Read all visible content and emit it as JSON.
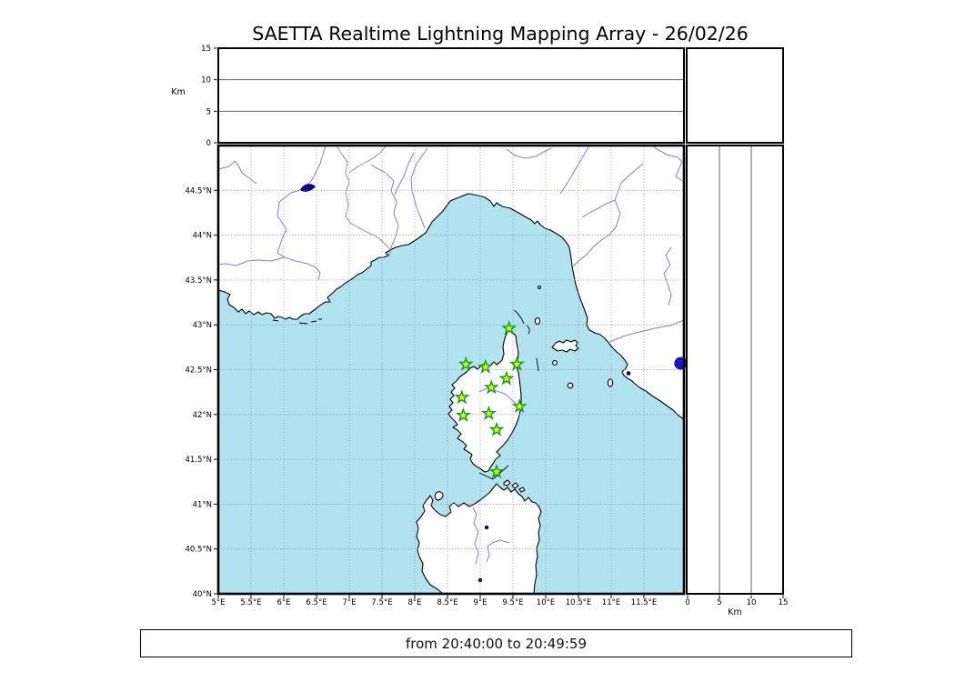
{
  "title": "SAETTA Realtime Lightning Mapping Array - 26/02/26",
  "footer": {
    "time_range": "from 20:40:00 to 20:49:59"
  },
  "figure": {
    "map_axes": {
      "lon_ticks": [
        {
          "value": 5,
          "label": "5°E"
        },
        {
          "value": 5.5,
          "label": "5.5°E"
        },
        {
          "value": 6,
          "label": "6°E"
        },
        {
          "value": 6.5,
          "label": "6.5°E"
        },
        {
          "value": 7,
          "label": "7°E"
        },
        {
          "value": 7.5,
          "label": "7.5°E"
        },
        {
          "value": 8,
          "label": "8°E"
        },
        {
          "value": 8.5,
          "label": "8.5°E"
        },
        {
          "value": 9,
          "label": "9°E"
        },
        {
          "value": 9.5,
          "label": "9.5°E"
        },
        {
          "value": 10,
          "label": "10°E"
        },
        {
          "value": 10.5,
          "label": "10.5°E"
        },
        {
          "value": 11,
          "label": "11°E"
        },
        {
          "value": 11.5,
          "label": "11.5°E"
        }
      ],
      "lat_ticks": [
        {
          "value": 44.5,
          "label": "44.5°N"
        },
        {
          "value": 44,
          "label": "44°N"
        },
        {
          "value": 43.5,
          "label": "43.5°N"
        },
        {
          "value": 43,
          "label": "43°N"
        },
        {
          "value": 42.5,
          "label": "42.5°N"
        },
        {
          "value": 42,
          "label": "42°N"
        },
        {
          "value": 41.5,
          "label": "41.5°N"
        },
        {
          "value": 41,
          "label": "41°N"
        },
        {
          "value": 40.5,
          "label": "40.5°N"
        },
        {
          "value": 40,
          "label": "40°N"
        }
      ]
    },
    "altitude_axes": {
      "unit_label": "Km",
      "max_km": 15,
      "ticks": [
        {
          "value": 0,
          "label": "0"
        },
        {
          "value": 5,
          "label": "5"
        },
        {
          "value": 10,
          "label": "10"
        },
        {
          "value": 15,
          "label": "15"
        }
      ]
    },
    "stations": {
      "marker": "star-icon",
      "count": 12,
      "points": [
        {
          "lon": 9.44,
          "lat": 42.96
        },
        {
          "lon": 8.78,
          "lat": 42.56
        },
        {
          "lon": 9.08,
          "lat": 42.53
        },
        {
          "lon": 9.56,
          "lat": 42.56
        },
        {
          "lon": 9.4,
          "lat": 42.4
        },
        {
          "lon": 9.17,
          "lat": 42.3
        },
        {
          "lon": 8.72,
          "lat": 42.19
        },
        {
          "lon": 9.6,
          "lat": 42.09
        },
        {
          "lon": 8.74,
          "lat": 41.99
        },
        {
          "lon": 9.13,
          "lat": 42.01
        },
        {
          "lon": 9.25,
          "lat": 41.83
        },
        {
          "lon": 9.25,
          "lat": 41.36
        }
      ]
    },
    "event_source": {
      "lon": 12.06,
      "lat": 42.57
    },
    "colors": {
      "sea": "#b0e2f0",
      "land": "#ffffff",
      "coast": "#000000",
      "river": "#7d7df0",
      "country_border": "#8a8a8a",
      "grid": "#8f8f8f",
      "panel_line": "#666666",
      "star_fill": "#ffff00",
      "star_stroke": "#00a414",
      "event_dot": "#1515cd",
      "lake": "#00008b"
    }
  }
}
